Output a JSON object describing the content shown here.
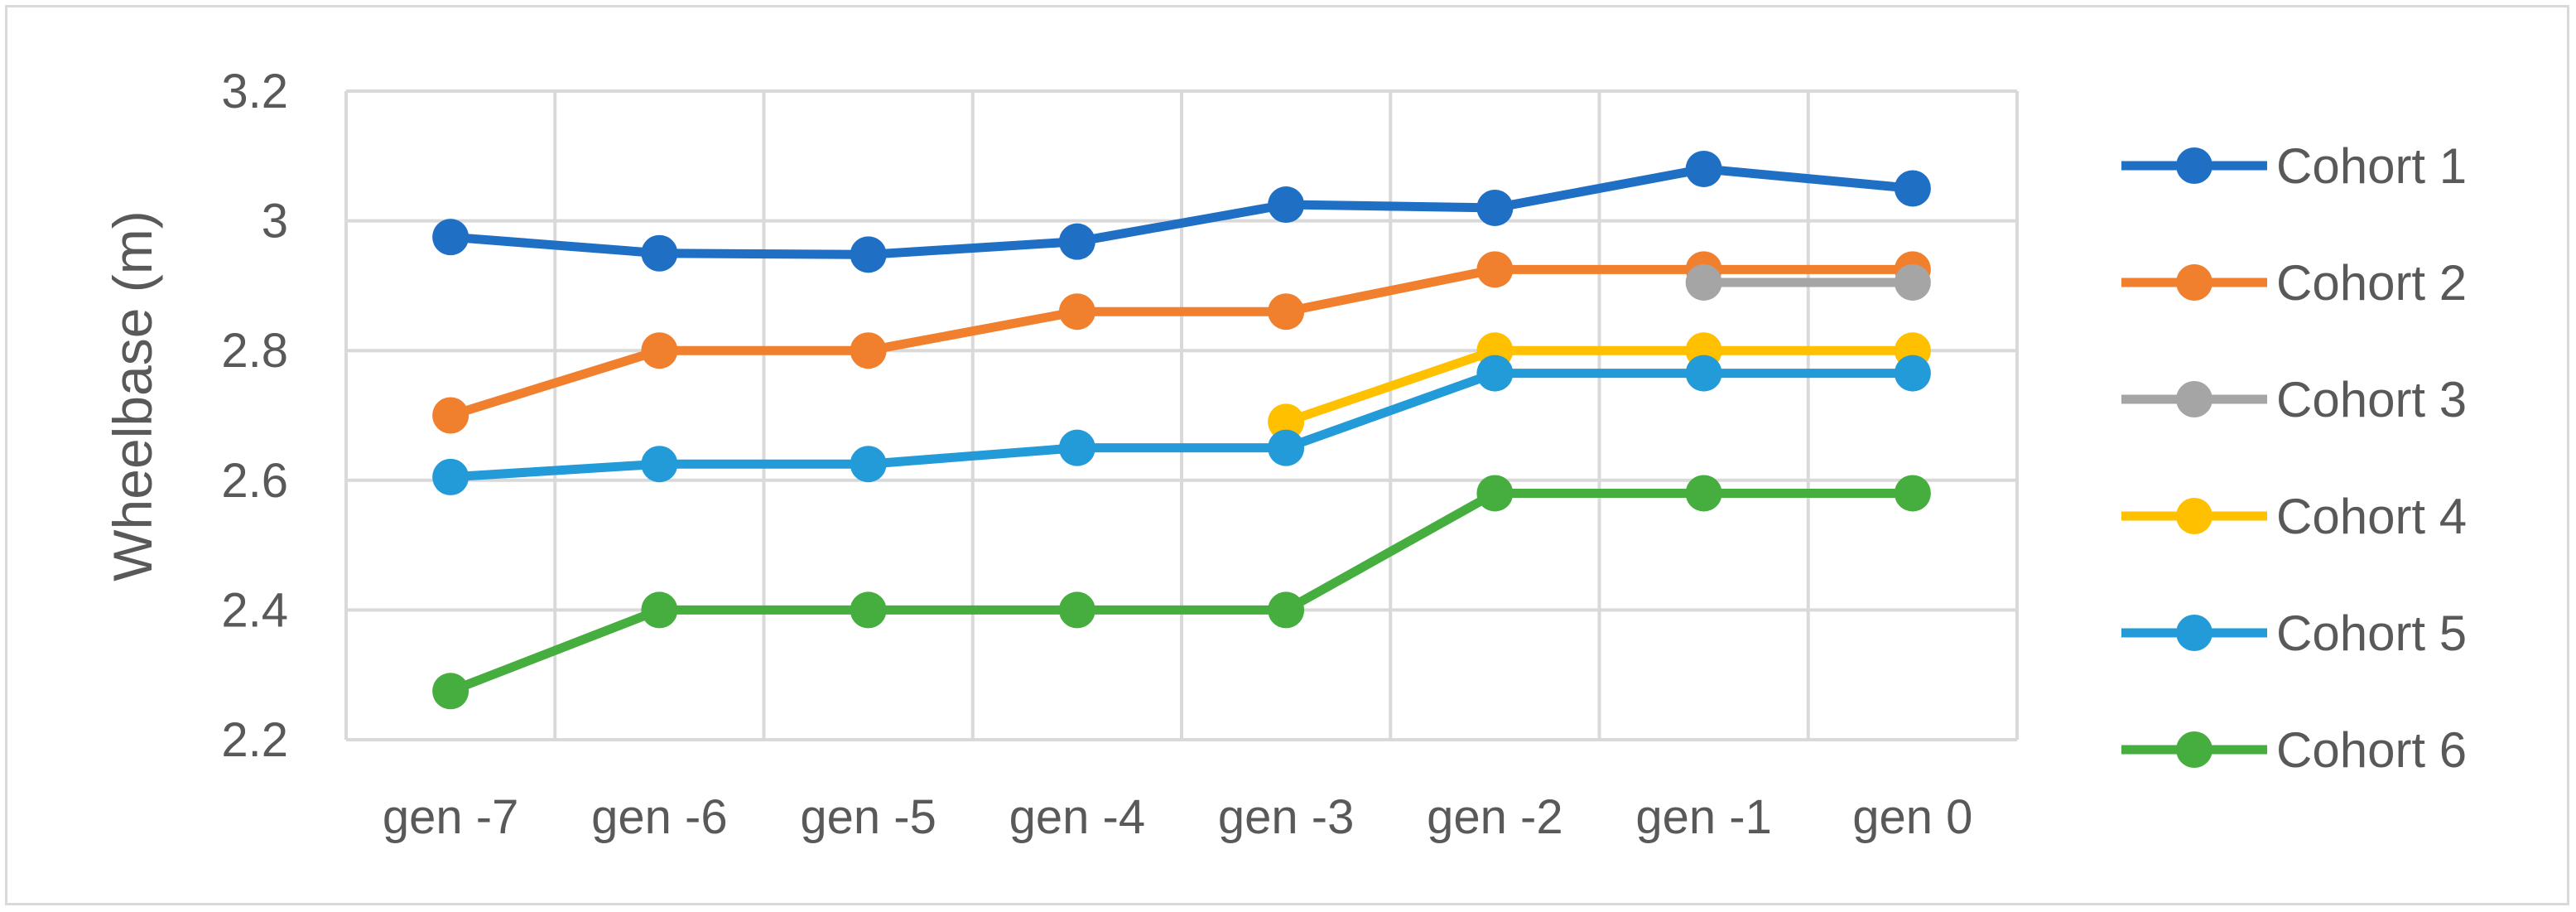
{
  "chart_data": {
    "type": "line",
    "title": "",
    "xlabel": "",
    "ylabel": "Wheelbase (m)",
    "categories": [
      "gen -7",
      "gen -6",
      "gen -5",
      "gen -4",
      "gen -3",
      "gen -2",
      "gen -1",
      "gen 0"
    ],
    "ylim": [
      2.2,
      3.2
    ],
    "yticks": [
      "2.2",
      "2.4",
      "2.6",
      "2.8",
      "3",
      "3.2"
    ],
    "grid": true,
    "legend_position": "right",
    "series": [
      {
        "name": "Cohort 1",
        "color": "#1f6fc5",
        "values": [
          2.975,
          2.95,
          2.948,
          2.968,
          3.025,
          3.02,
          3.08,
          3.05
        ]
      },
      {
        "name": "Cohort 2",
        "color": "#f07f2e",
        "values": [
          2.7,
          2.8,
          2.8,
          2.86,
          2.86,
          2.925,
          2.925,
          2.925
        ]
      },
      {
        "name": "Cohort 3",
        "color": "#a5a5a5",
        "values": [
          null,
          null,
          null,
          null,
          null,
          null,
          2.905,
          2.905
        ]
      },
      {
        "name": "Cohort 4",
        "color": "#ffc000",
        "values": [
          null,
          null,
          null,
          null,
          2.69,
          2.8,
          2.8,
          2.8
        ]
      },
      {
        "name": "Cohort 5",
        "color": "#229bd8",
        "values": [
          2.605,
          2.625,
          2.625,
          2.65,
          2.65,
          2.765,
          2.765,
          2.765
        ]
      },
      {
        "name": "Cohort 6",
        "color": "#46ad3f",
        "values": [
          2.275,
          2.4,
          2.4,
          2.4,
          2.4,
          2.58,
          2.58,
          2.58
        ]
      }
    ]
  }
}
